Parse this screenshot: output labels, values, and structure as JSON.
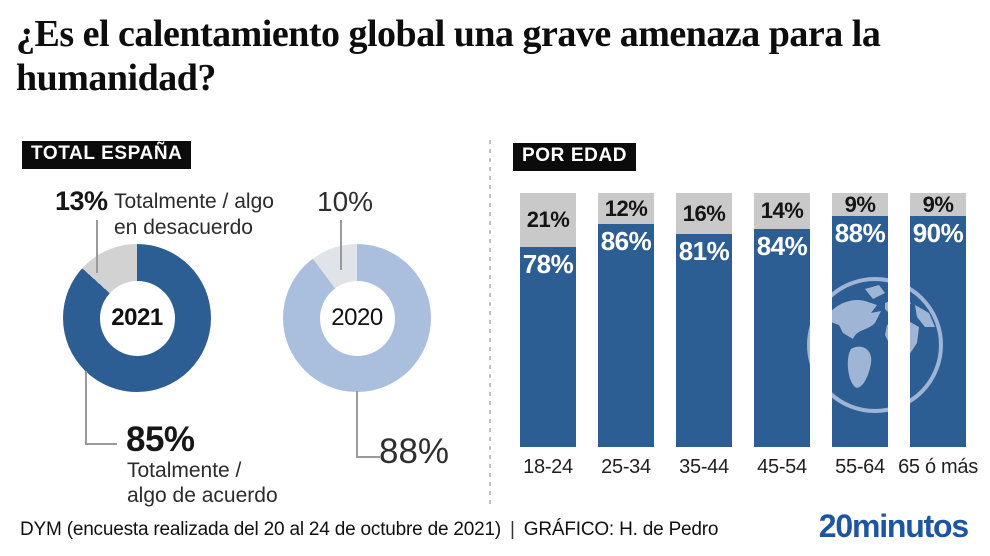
{
  "page": {
    "title": "¿Es el calentamiento global una grave amenaza para la humanidad?"
  },
  "sections": {
    "total_espana": {
      "chip": "TOTAL ESPAÑA",
      "donut_2021": {
        "center_label": "2021",
        "disagree_pct": "13%",
        "disagree_lines": [
          "Totalmente / algo",
          "en desacuerdo"
        ],
        "agree_pct": "85%",
        "agree_lines": [
          "Totalmente /",
          "algo de acuerdo"
        ]
      },
      "donut_2020": {
        "center_label": "2020",
        "disagree_pct": "10%",
        "agree_pct": "88%"
      }
    },
    "por_edad": {
      "chip": "POR EDAD"
    }
  },
  "chart_data": [
    {
      "type": "pie",
      "name": "total_espana_2021",
      "center_label": "2021",
      "labels": [
        "Totalmente / algo de acuerdo",
        "Totalmente / algo en desacuerdo"
      ],
      "values": [
        85,
        13
      ],
      "colors": [
        "#2d5e93",
        "#d2d2d2"
      ]
    },
    {
      "type": "pie",
      "name": "total_espana_2020",
      "center_label": "2020",
      "labels": [
        "Totalmente / algo de acuerdo",
        "Totalmente / algo en desacuerdo"
      ],
      "values": [
        88,
        10
      ],
      "colors": [
        "#aabfde",
        "#e0e3e7"
      ]
    },
    {
      "type": "bar",
      "name": "por_edad",
      "stacked": true,
      "categories": [
        "18-24",
        "25-34",
        "35-44",
        "45-54",
        "55-64",
        "65 ó más"
      ],
      "series": [
        {
          "name": "Totalmente / algo de acuerdo",
          "values": [
            78,
            86,
            81,
            84,
            88,
            90
          ],
          "color": "#2d5e93"
        },
        {
          "name": "Totalmente / algo en desacuerdo",
          "values": [
            21,
            12,
            16,
            14,
            9,
            9
          ],
          "color": "#c9c9c9"
        }
      ],
      "value_suffix": "%",
      "ylim": [
        0,
        100
      ],
      "grid": false,
      "legend": false
    }
  ],
  "footer": {
    "source": "DYM (encuesta realizada del 20 al 24 de octubre de 2021)",
    "separator": "|",
    "credit": "GRÁFICO: H. de Pedro",
    "brand": "20minutos"
  },
  "colors": {
    "agree_2021": "#2d5e93",
    "disagree_2021": "#d2d2d2",
    "agree_2020": "#aabfde",
    "disagree_2020": "#e0e3e7",
    "bar_agree": "#2d5e93",
    "bar_disagree": "#c9c9c9",
    "globe_blue": "#9fb5d5",
    "brand_blue": "#1d55a1",
    "chip_bg": "#0b0b0b"
  }
}
